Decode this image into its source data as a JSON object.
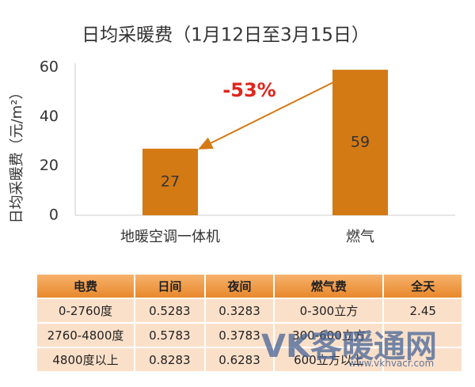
{
  "chart_data": {
    "type": "bar",
    "title": "日均采暖费（1月12日至3月15日）",
    "y_label": "日均采暖费（元/m²）",
    "categories": [
      "地暖空调一体机",
      "燃气"
    ],
    "values": [
      27,
      59
    ],
    "color": "#d37a14",
    "ylim": [
      0,
      60
    ],
    "yticks": [
      0,
      20,
      40,
      60
    ],
    "grid": false,
    "annotation": "-53%",
    "annotation_color": "#e0261b"
  },
  "table": {
    "header": [
      "电费",
      "日间",
      "夜间",
      "燃气费",
      "全天"
    ],
    "rows": [
      [
        "0-2760度",
        "0.5283",
        "0.3283",
        "0-300立方",
        "2.45"
      ],
      [
        "2760-4800度",
        "0.5783",
        "0.3783",
        "300-600立方"
      ],
      [
        "4800度以上",
        "0.8283",
        "0.6283",
        "600立方以上"
      ]
    ]
  },
  "watermark": {
    "logo": "VK客暖通网",
    "url": "www.vkhvacr.com"
  }
}
